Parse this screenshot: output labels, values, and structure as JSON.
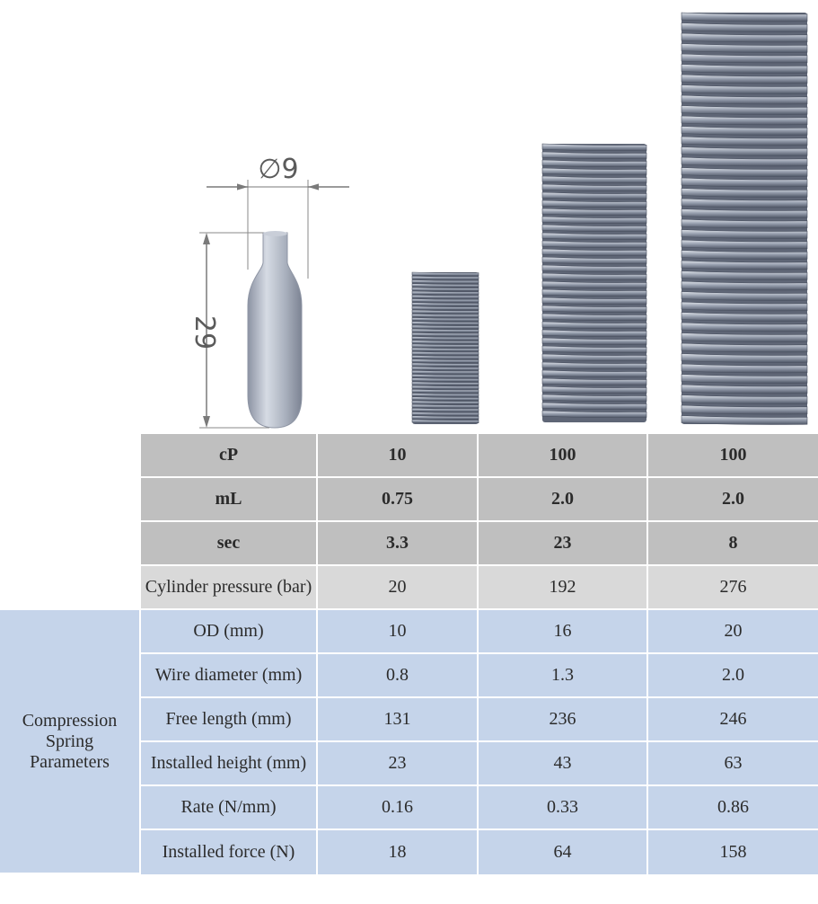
{
  "diagram": {
    "cylinder_diameter_label": "∅9",
    "cylinder_height_label": "29",
    "springs": [
      {
        "name": "spring-small"
      },
      {
        "name": "spring-medium"
      },
      {
        "name": "spring-large"
      }
    ]
  },
  "table": {
    "group_label": "Compression Spring Parameters",
    "group_label_lines": [
      "Compression",
      "Spring",
      "Parameters"
    ],
    "rows": [
      {
        "label": "cP",
        "values": [
          "10",
          "100",
          "100"
        ],
        "style": "dark"
      },
      {
        "label": "mL",
        "values": [
          "0.75",
          "2.0",
          "2.0"
        ],
        "style": "dark"
      },
      {
        "label": "sec",
        "values": [
          "3.3",
          "23",
          "8"
        ],
        "style": "dark"
      },
      {
        "label": "Cylinder pressure (bar)",
        "values": [
          "20",
          "192",
          "276"
        ],
        "style": "light"
      },
      {
        "label": "OD (mm)",
        "values": [
          "10",
          "16",
          "20"
        ],
        "style": "blue"
      },
      {
        "label": "Wire diameter (mm)",
        "values": [
          "0.8",
          "1.3",
          "2.0"
        ],
        "style": "blue"
      },
      {
        "label": "Free length (mm)",
        "values": [
          "131",
          "236",
          "246"
        ],
        "style": "blue"
      },
      {
        "label": "Installed height (mm)",
        "values": [
          "23",
          "43",
          "63"
        ],
        "style": "blue"
      },
      {
        "label": "Rate (N/mm)",
        "values": [
          "0.16",
          "0.33",
          "0.86"
        ],
        "style": "blue"
      },
      {
        "label": "Installed force (N)",
        "values": [
          "18",
          "64",
          "158"
        ],
        "style": "blue"
      }
    ]
  },
  "colors": {
    "coil": "#8e96a6",
    "coil_highlight": "#d5dae3",
    "coil_shadow": "#4f5666",
    "cylinder": "#b7bdc9",
    "dimension_line": "#7a7a7a",
    "dark_row": "#bfbfbf",
    "light_row": "#d9d9d9",
    "blue_row": "#c5d4ea"
  }
}
